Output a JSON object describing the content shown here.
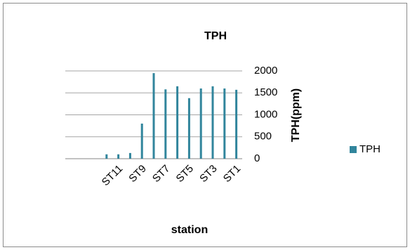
{
  "chart_data": {
    "type": "bar",
    "title": "TPH",
    "x_label": "station",
    "y_label": "TPH(ppm)",
    "categories": [
      null,
      null,
      null,
      null,
      "ST11",
      null,
      "ST9",
      null,
      "ST7",
      null,
      "ST5",
      null,
      "ST3",
      null,
      "ST1"
    ],
    "series": [
      {
        "name": "TPH",
        "color": "#31859c",
        "values": [
          null,
          null,
          null,
          100,
          100,
          130,
          800,
          1950,
          1580,
          1650,
          1380,
          1600,
          1650,
          1600,
          1570
        ]
      }
    ],
    "ylim": [
      0,
      2000
    ],
    "yticks": [
      0,
      500,
      1000,
      1500,
      2000
    ],
    "grid": true,
    "legend": "right"
  }
}
